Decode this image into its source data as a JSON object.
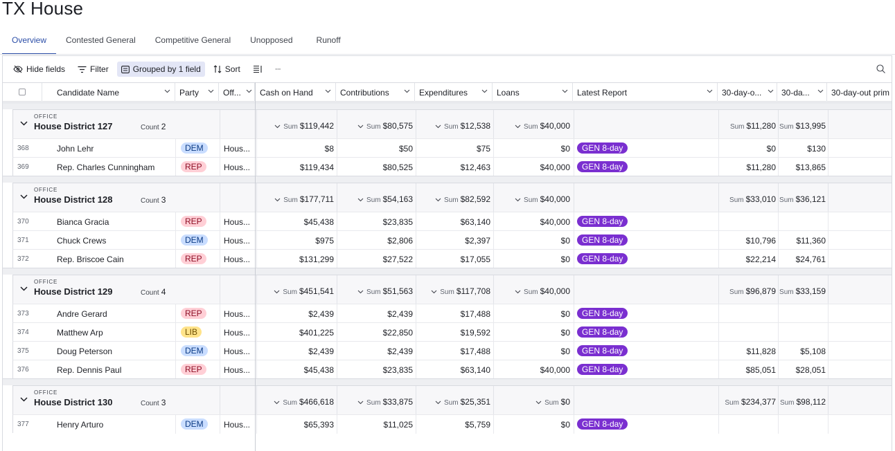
{
  "app": {
    "title": "TX House"
  },
  "tabs": [
    {
      "label": "Overview"
    },
    {
      "label": "Contested General"
    },
    {
      "label": "Competitive General"
    },
    {
      "label": "Unopposed"
    },
    {
      "label": "Runoff"
    }
  ],
  "toolbar": {
    "hide_fields": "Hide fields",
    "filter": "Filter",
    "grouped": "Grouped by 1 field",
    "sort": "Sort",
    "more": "···"
  },
  "columns": {
    "name": "Candidate Name",
    "party": "Party",
    "office": "Off...",
    "cash": "Cash on Hand",
    "contrib": "Contributions",
    "expend": "Expenditures",
    "loans": "Loans",
    "report": "Latest Report",
    "c30a": "30-day-o...",
    "c30b": "30-da...",
    "c30c": "30-day-out prim"
  },
  "group_field_label": "OFFICE",
  "count_label": "Count",
  "sum_label": "Sum",
  "groups": [
    {
      "name": "House District 127",
      "count": "2",
      "cash": "$119,442",
      "contrib": "$80,575",
      "expend": "$12,538",
      "loans": "$40,000",
      "c30a": "$11,280",
      "c30b": "$13,995",
      "rows": [
        {
          "num": "368",
          "name": "John Lehr",
          "party": "DEM",
          "office": "Hous...",
          "cash": "$8",
          "contrib": "$50",
          "expend": "$75",
          "loans": "$0",
          "report": "GEN 8-day",
          "c30a": "$0",
          "c30b": "$130"
        },
        {
          "num": "369",
          "name": "Rep. Charles Cunningham",
          "party": "REP",
          "office": "Hous...",
          "cash": "$119,434",
          "contrib": "$80,525",
          "expend": "$12,463",
          "loans": "$40,000",
          "report": "GEN 8-day",
          "c30a": "$11,280",
          "c30b": "$13,865"
        }
      ]
    },
    {
      "name": "House District 128",
      "count": "3",
      "cash": "$177,711",
      "contrib": "$54,163",
      "expend": "$82,592",
      "loans": "$40,000",
      "c30a": "$33,010",
      "c30b": "$36,121",
      "rows": [
        {
          "num": "370",
          "name": "Bianca Gracia",
          "party": "REP",
          "office": "Hous...",
          "cash": "$45,438",
          "contrib": "$23,835",
          "expend": "$63,140",
          "loans": "$40,000",
          "report": "GEN 8-day",
          "c30a": "",
          "c30b": ""
        },
        {
          "num": "371",
          "name": "Chuck Crews",
          "party": "DEM",
          "office": "Hous...",
          "cash": "$975",
          "contrib": "$2,806",
          "expend": "$2,397",
          "loans": "$0",
          "report": "GEN 8-day",
          "c30a": "$10,796",
          "c30b": "$11,360"
        },
        {
          "num": "372",
          "name": "Rep. Briscoe Cain",
          "party": "REP",
          "office": "Hous...",
          "cash": "$131,299",
          "contrib": "$27,522",
          "expend": "$17,055",
          "loans": "$0",
          "report": "GEN 8-day",
          "c30a": "$22,214",
          "c30b": "$24,761"
        }
      ]
    },
    {
      "name": "House District 129",
      "count": "4",
      "cash": "$451,541",
      "contrib": "$51,563",
      "expend": "$117,708",
      "loans": "$40,000",
      "c30a": "$96,879",
      "c30b": "$33,159",
      "rows": [
        {
          "num": "373",
          "name": "Andre Gerard",
          "party": "REP",
          "office": "Hous...",
          "cash": "$2,439",
          "contrib": "$2,439",
          "expend": "$17,488",
          "loans": "$0",
          "report": "GEN 8-day",
          "c30a": "",
          "c30b": ""
        },
        {
          "num": "374",
          "name": "Matthew Arp",
          "party": "LIB",
          "office": "Hous...",
          "cash": "$401,225",
          "contrib": "$22,850",
          "expend": "$19,592",
          "loans": "$0",
          "report": "GEN 8-day",
          "c30a": "",
          "c30b": ""
        },
        {
          "num": "375",
          "name": "Doug Peterson",
          "party": "DEM",
          "office": "Hous...",
          "cash": "$2,439",
          "contrib": "$2,439",
          "expend": "$17,488",
          "loans": "$0",
          "report": "GEN 8-day",
          "c30a": "$11,828",
          "c30b": "$5,108"
        },
        {
          "num": "376",
          "name": "Rep. Dennis Paul",
          "party": "REP",
          "office": "Hous...",
          "cash": "$45,438",
          "contrib": "$23,835",
          "expend": "$63,140",
          "loans": "$40,000",
          "report": "GEN 8-day",
          "c30a": "$85,051",
          "c30b": "$28,051"
        }
      ]
    },
    {
      "name": "House District 130",
      "count": "3",
      "cash": "$466,618",
      "contrib": "$33,875",
      "expend": "$25,351",
      "loans": "$0",
      "c30a": "$234,377",
      "c30b": "$98,112",
      "rows": [
        {
          "num": "377",
          "name": "Henry Arturo",
          "party": "DEM",
          "office": "Hous...",
          "cash": "$65,393",
          "contrib": "$11,025",
          "expend": "$5,759",
          "loans": "$0",
          "report": "GEN 8-day",
          "c30a": "",
          "c30b": ""
        }
      ]
    }
  ],
  "colors": {
    "accent": "#2d4fa8",
    "report_pill": "#7a2fd0",
    "dem": "#c9ddff",
    "rep": "#ffcfd6",
    "lib": "#ffe38a"
  }
}
